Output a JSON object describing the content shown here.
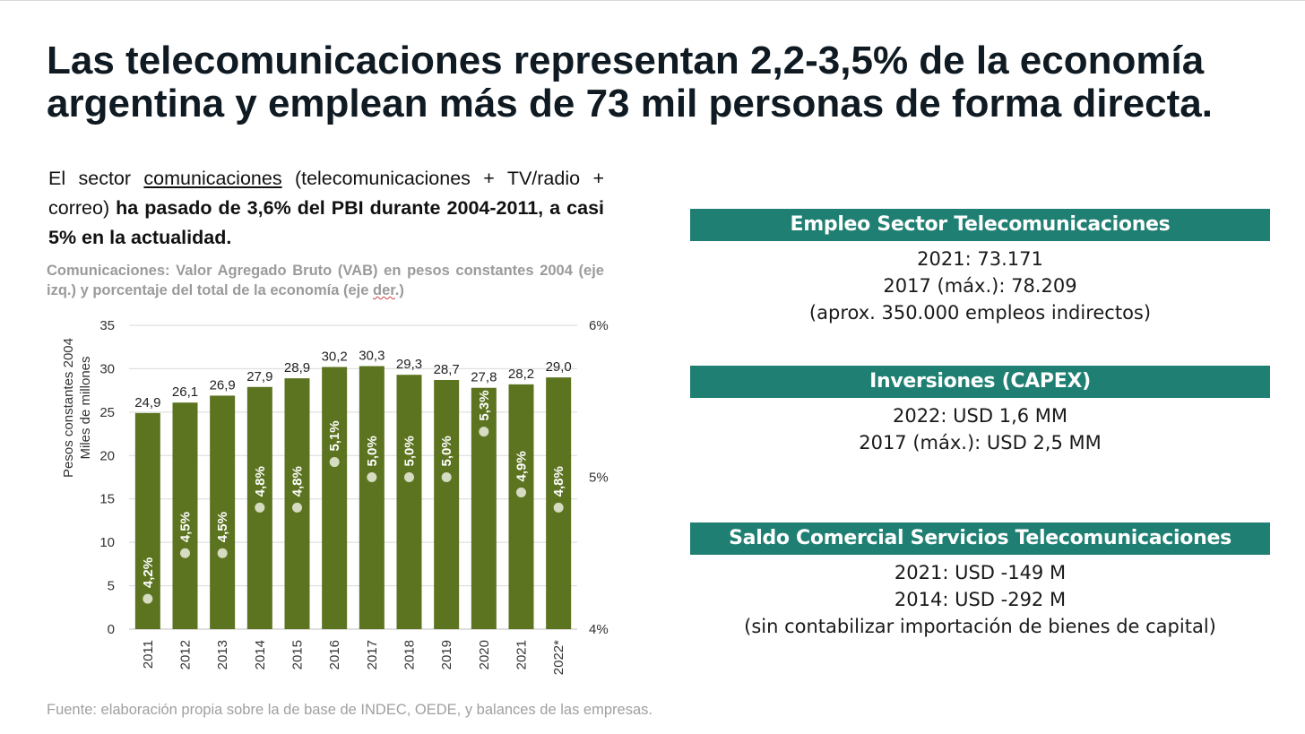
{
  "title": {
    "line1": "Las telecomunicaciones representan 2,2-3,5% de la economía",
    "line2": "argentina y emplean más de 73 mil personas de forma directa."
  },
  "intro": {
    "part1": "El sector ",
    "underlined": "comunicaciones",
    "part2": " (telecomunicaciones + TV/radio + correo) ",
    "bold": "ha pasado de 3,6% del PBI durante 2004-2011, a casi 5% en la actualidad."
  },
  "chart_subtitle": {
    "part1": "Comunicaciones: Valor Agregado Bruto (VAB) en pesos constantes 2004 (eje izq.) y porcentaje del total de la economía (eje ",
    "underlined": "der",
    "part2": ".)"
  },
  "chart_data": {
    "type": "bar",
    "categories": [
      "2011",
      "2012",
      "2013",
      "2014",
      "2015",
      "2016",
      "2017",
      "2018",
      "2019",
      "2020",
      "2021",
      "2022*"
    ],
    "series": [
      {
        "name": "",
        "axis": "left",
        "values": [
          24.9,
          26.1,
          26.9,
          27.9,
          28.9,
          30.2,
          30.3,
          29.3,
          28.7,
          27.8,
          28.2,
          29.0
        ],
        "labels": [
          "24,9",
          "26,1",
          "26,9",
          "27,9",
          "28,9",
          "30,2",
          "30,3",
          "29,3",
          "28,7",
          "27,8",
          "28,2",
          "29,0"
        ]
      },
      {
        "name": "",
        "axis": "right",
        "values": [
          4.2,
          4.5,
          4.5,
          4.8,
          4.8,
          5.1,
          5.0,
          5.0,
          5.0,
          5.3,
          4.9,
          4.8
        ],
        "labels": [
          "4,2%",
          "4,5%",
          "4,5%",
          "4,8%",
          "4,8%",
          "5,1%",
          "5,0%",
          "5,0%",
          "5,0%",
          "5,3%",
          "4,9%",
          "4,8%"
        ]
      }
    ],
    "ylabel_line1": "Pesos constantes 2004",
    "ylabel_line2": "Miles de millones",
    "ylim": [
      0,
      35
    ],
    "yticks": [
      "0",
      "5",
      "10",
      "15",
      "20",
      "25",
      "30",
      "35"
    ],
    "y2lim": [
      4,
      6
    ],
    "y2ticks": [
      "4%",
      "5%",
      "6%"
    ],
    "grid": true,
    "bar_color": "#5c7420",
    "marker_color": "#d6dcc2"
  },
  "boxes": [
    {
      "header": "Empleo Sector Telecomunicaciones",
      "lines": [
        "2021: 73.171",
        "2017 (máx.): 78.209",
        "(aprox. 350.000 empleos indirectos)"
      ]
    },
    {
      "header": "Inversiones (CAPEX)",
      "lines": [
        "2022: USD 1,6 MM",
        "2017 (máx.): USD 2,5 MM"
      ]
    },
    {
      "header": "Saldo Comercial Servicios Telecomunicaciones",
      "lines": [
        "2021: USD -149 M",
        "2014: USD -292 M",
        "(sin contabilizar importación de bienes de capital)"
      ]
    }
  ],
  "accent_color": "#1f7f72",
  "source": "Fuente: elaboración propia sobre la de base de INDEC, OEDE, y balances de las empresas."
}
